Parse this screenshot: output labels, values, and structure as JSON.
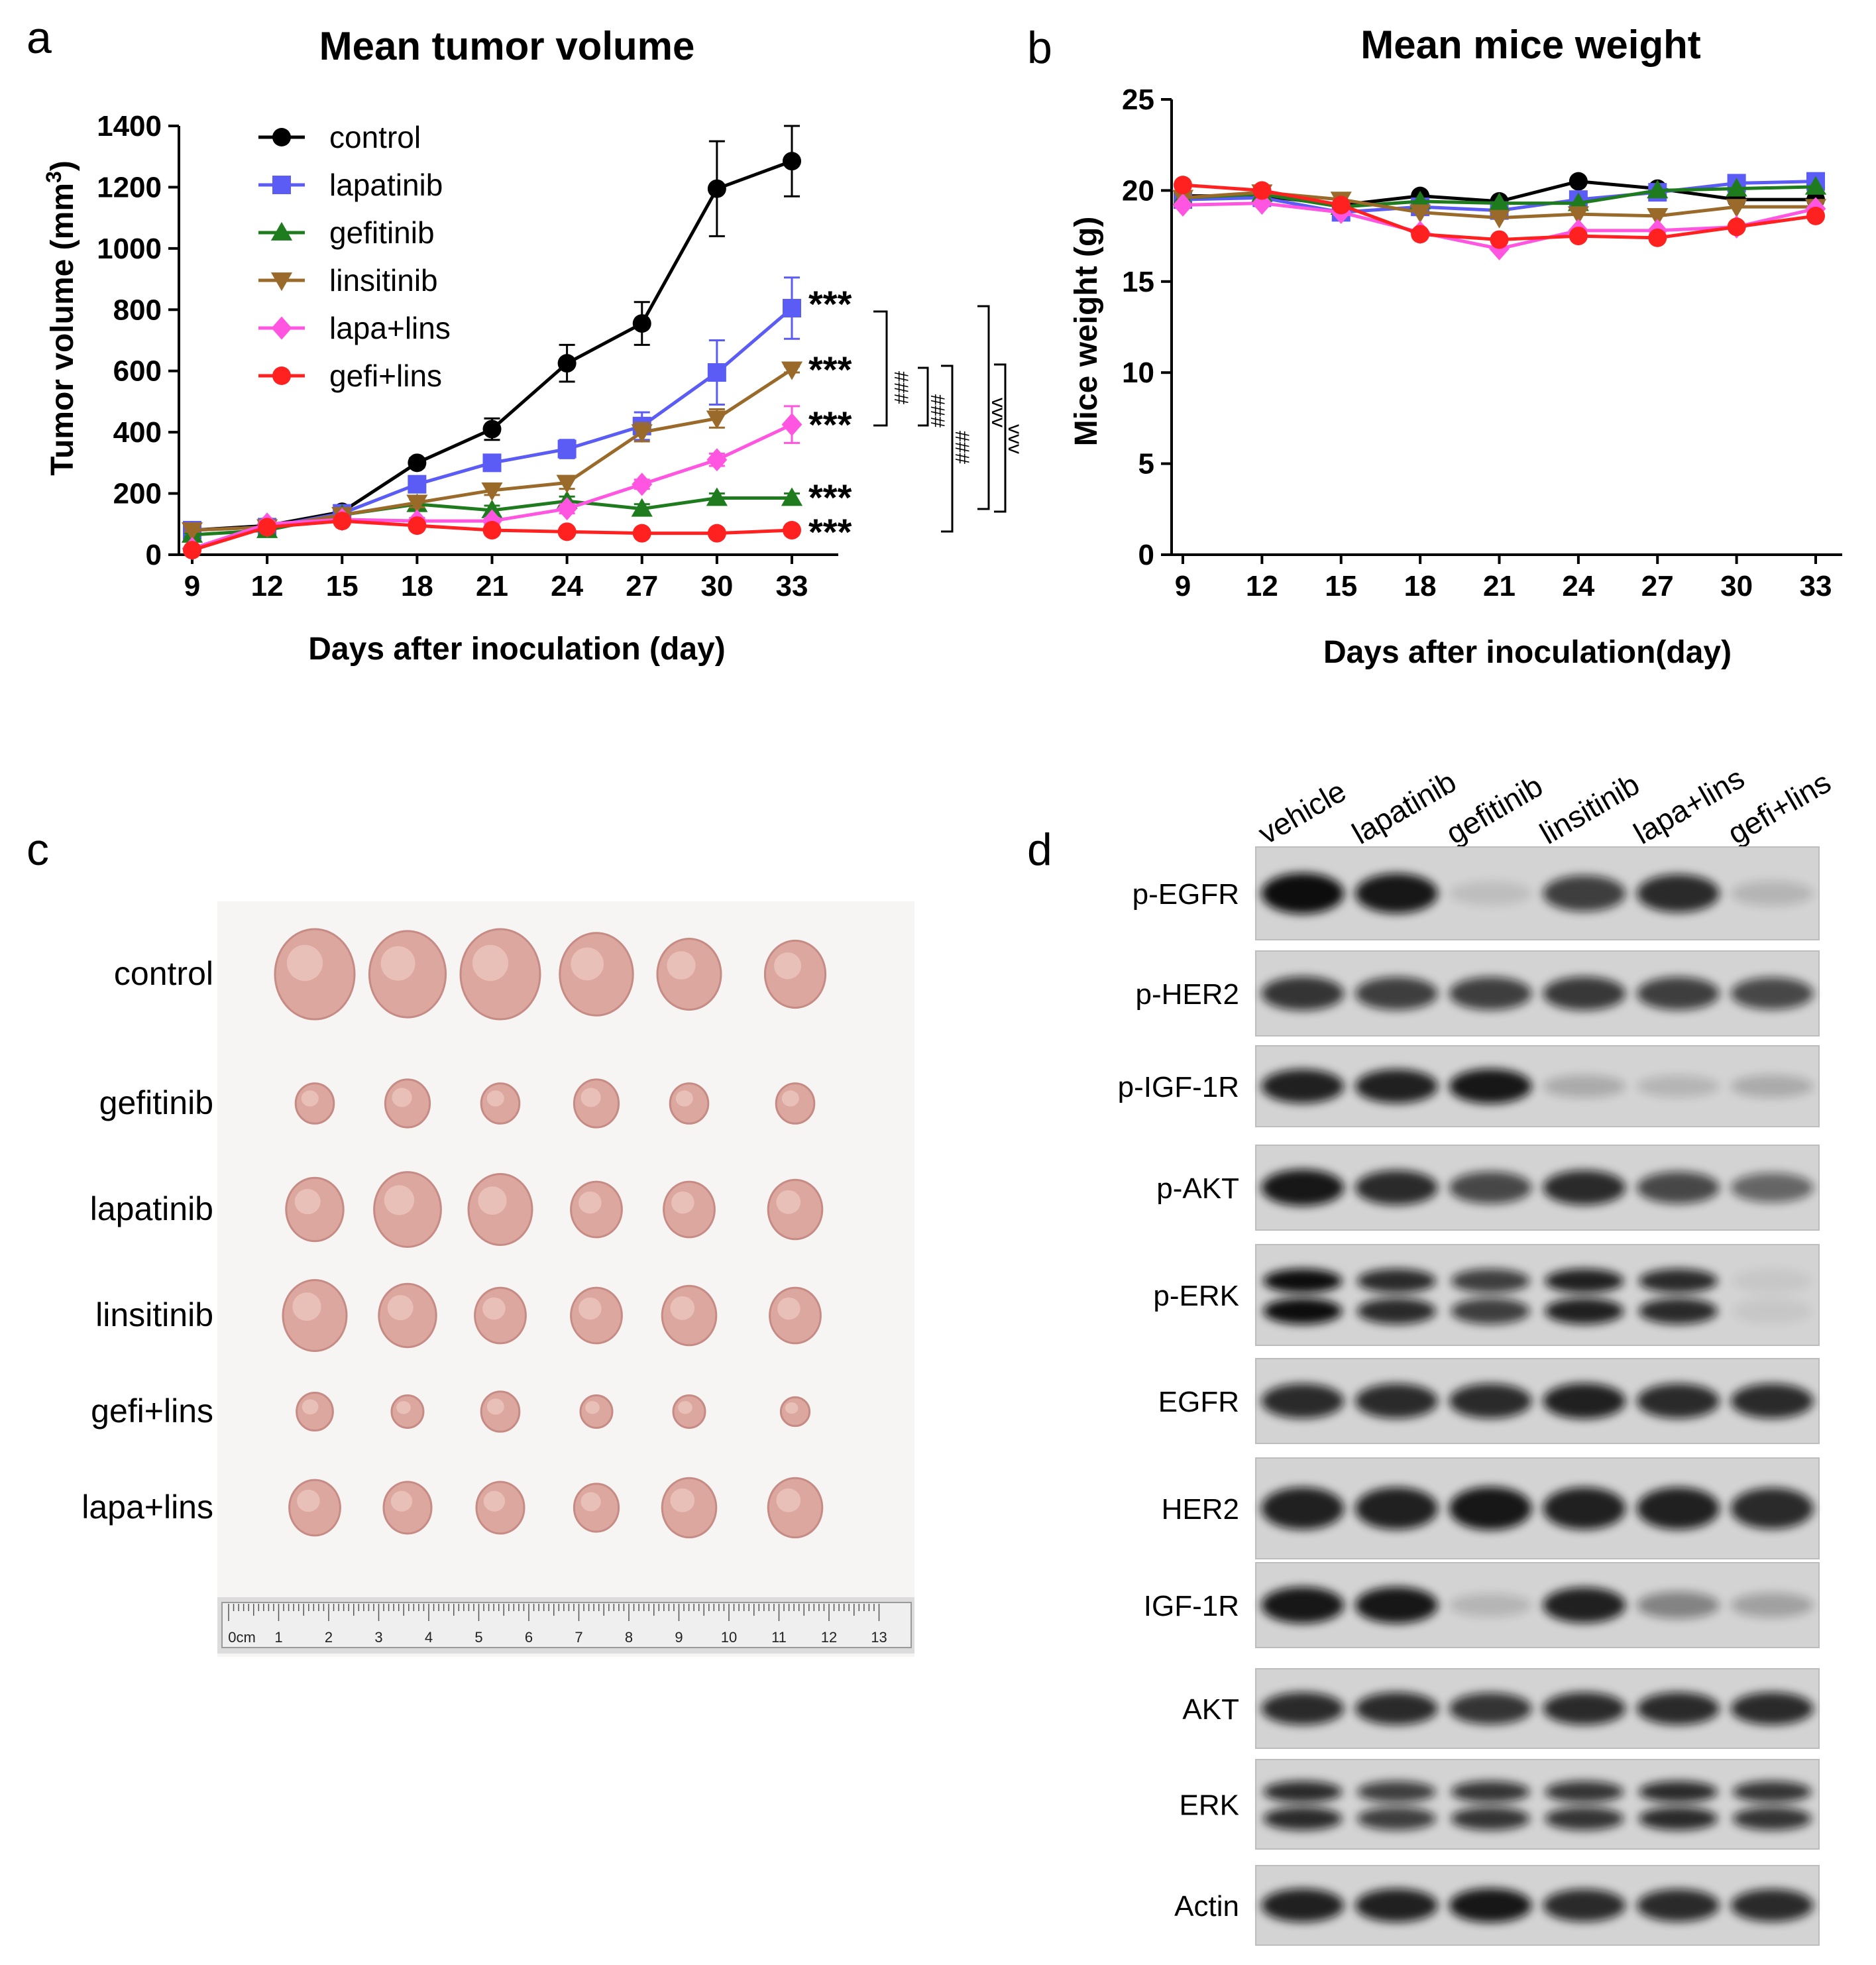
{
  "panels": {
    "a": "a",
    "b": "b",
    "c": "c",
    "d": "d"
  },
  "chart_data": [
    {
      "type": "line",
      "panel": "a",
      "title": "Mean tumor volume",
      "xlabel": "Days after inoculation (day)",
      "ylabel_main": "Tumor volume (mm",
      "ylabel_sup": "3",
      "ylabel_close": ")",
      "x": [
        9,
        12,
        15,
        18,
        21,
        24,
        27,
        30,
        33
      ],
      "x_ticks": [
        "9",
        "12",
        "15",
        "18",
        "21",
        "24",
        "27",
        "30",
        "33"
      ],
      "ylim": [
        0,
        1400
      ],
      "y_ticks": [
        "0",
        "200",
        "400",
        "600",
        "800",
        "1000",
        "1200",
        "1400"
      ],
      "legend_position": "top-left",
      "series": [
        {
          "name": "control",
          "color": "#000000",
          "marker": "circle",
          "values": [
            80,
            95,
            140,
            300,
            410,
            625,
            755,
            1195,
            1285
          ],
          "err": [
            10,
            10,
            15,
            15,
            35,
            60,
            70,
            155,
            115
          ]
        },
        {
          "name": "lapatinib",
          "color": "#5b5bf5",
          "marker": "square",
          "values": [
            80,
            90,
            135,
            230,
            300,
            345,
            420,
            595,
            805
          ],
          "err": [
            10,
            10,
            10,
            20,
            20,
            30,
            45,
            105,
            100
          ]
        },
        {
          "name": "gefitinib",
          "color": "#1e7b1e",
          "marker": "triangle-up",
          "values": [
            65,
            80,
            130,
            165,
            145,
            175,
            150,
            185,
            185
          ],
          "err": [
            5,
            5,
            10,
            15,
            15,
            15,
            15,
            15,
            15
          ]
        },
        {
          "name": "linsitinib",
          "color": "#9a6a2a",
          "marker": "triangle-down",
          "values": [
            80,
            90,
            130,
            170,
            210,
            235,
            400,
            445,
            605
          ],
          "err": [
            5,
            5,
            10,
            15,
            15,
            20,
            30,
            30,
            10
          ]
        },
        {
          "name": "lapa+lins",
          "color": "#ff55e0",
          "marker": "diamond",
          "values": [
            20,
            100,
            115,
            110,
            110,
            150,
            230,
            310,
            425
          ],
          "err": [
            5,
            10,
            10,
            10,
            10,
            15,
            15,
            20,
            60
          ]
        },
        {
          "name": "gefi+lins",
          "color": "#ff2020",
          "marker": "circle",
          "values": [
            15,
            90,
            110,
            95,
            80,
            75,
            70,
            70,
            80
          ],
          "err": [
            5,
            10,
            10,
            10,
            10,
            10,
            10,
            10,
            10
          ]
        }
      ],
      "annotations": {
        "stars": [
          "***",
          "***",
          "***",
          "***",
          "***"
        ],
        "hash": "###",
        "vvv": "vvv"
      }
    },
    {
      "type": "line",
      "panel": "b",
      "title": "Mean mice weight",
      "xlabel": "Days after inoculation(day)",
      "ylabel": "Mice weight (g)",
      "x": [
        9,
        12,
        15,
        18,
        21,
        24,
        27,
        30,
        33
      ],
      "x_ticks": [
        "9",
        "12",
        "15",
        "18",
        "21",
        "24",
        "27",
        "30",
        "33"
      ],
      "ylim": [
        0,
        25
      ],
      "y_ticks": [
        "0",
        "5",
        "10",
        "15",
        "20",
        "25"
      ],
      "series": [
        {
          "name": "control",
          "color": "#000000",
          "marker": "circle",
          "values": [
            19.7,
            19.7,
            19.2,
            19.7,
            19.4,
            20.5,
            20.1,
            19.5,
            19.5
          ]
        },
        {
          "name": "lapatinib",
          "color": "#5b5bf5",
          "marker": "square",
          "values": [
            19.5,
            19.6,
            18.8,
            19.1,
            18.9,
            19.5,
            19.9,
            20.4,
            20.5
          ]
        },
        {
          "name": "gefitinib",
          "color": "#1e7b1e",
          "marker": "triangle-up",
          "values": [
            19.6,
            19.8,
            19.1,
            19.4,
            19.3,
            19.3,
            20.0,
            20.1,
            20.2
          ]
        },
        {
          "name": "linsitinib",
          "color": "#9a6a2a",
          "marker": "triangle-down",
          "values": [
            19.6,
            19.9,
            19.5,
            18.8,
            18.5,
            18.7,
            18.6,
            19.1,
            19.1
          ]
        },
        {
          "name": "lapa+lins",
          "color": "#ff55e0",
          "marker": "diamond",
          "values": [
            19.2,
            19.3,
            18.8,
            17.7,
            16.8,
            17.8,
            17.8,
            18.0,
            19.0
          ]
        },
        {
          "name": "gefi+lins",
          "color": "#ff2020",
          "marker": "circle",
          "values": [
            20.3,
            20.0,
            19.2,
            17.6,
            17.3,
            17.5,
            17.4,
            18.0,
            18.6
          ]
        }
      ]
    }
  ],
  "photo": {
    "rows": [
      {
        "label": "control",
        "sizes": [
          1.0,
          0.95,
          1.0,
          0.9,
          0.75,
          0.7
        ]
      },
      {
        "label": "gefitinib",
        "sizes": [
          0.35,
          0.45,
          0.35,
          0.45,
          0.35,
          0.35
        ]
      },
      {
        "label": "lapatinib",
        "sizes": [
          0.65,
          0.8,
          0.75,
          0.55,
          0.55,
          0.6
        ]
      },
      {
        "label": "linsitinib",
        "sizes": [
          0.75,
          0.65,
          0.55,
          0.55,
          0.6,
          0.55
        ]
      },
      {
        "label": "gefi+lins",
        "sizes": [
          0.32,
          0.25,
          0.35,
          0.25,
          0.25,
          0.2
        ]
      },
      {
        "label": "lapa+lins",
        "sizes": [
          0.55,
          0.5,
          0.5,
          0.45,
          0.6,
          0.6
        ]
      }
    ],
    "ruler_labels": [
      "0cm",
      "1",
      "2",
      "3",
      "4",
      "5",
      "6",
      "7",
      "8",
      "9",
      "10",
      "11",
      "12",
      "13"
    ]
  },
  "western": {
    "lanes": [
      "vehicle",
      "lapatinib",
      "gefitinib",
      "linsitinib",
      "lapa+lins",
      "gefi+lins"
    ],
    "blots": [
      {
        "label": "p-EGFR",
        "bands": 1,
        "intensity": [
          1.0,
          0.95,
          0.1,
          0.75,
          0.85,
          0.15
        ]
      },
      {
        "label": "p-HER2",
        "bands": 1,
        "intensity": [
          0.8,
          0.75,
          0.75,
          0.78,
          0.75,
          0.7
        ]
      },
      {
        "label": "p-IGF-1R",
        "bands": 1,
        "intensity": [
          0.9,
          0.9,
          0.95,
          0.2,
          0.15,
          0.2
        ]
      },
      {
        "label": "p-AKT",
        "bands": 1,
        "intensity": [
          0.95,
          0.85,
          0.7,
          0.85,
          0.7,
          0.55
        ]
      },
      {
        "label": "p-ERK",
        "bands": 2,
        "intensity": [
          1.0,
          0.85,
          0.75,
          0.9,
          0.85,
          0.05
        ]
      },
      {
        "label": "EGFR",
        "bands": 1,
        "intensity": [
          0.85,
          0.85,
          0.85,
          0.9,
          0.85,
          0.85
        ]
      },
      {
        "label": "HER2",
        "bands": 1,
        "intensity": [
          0.9,
          0.9,
          0.95,
          0.9,
          0.9,
          0.85
        ]
      },
      {
        "label": "IGF-1R",
        "bands": 1,
        "intensity": [
          0.95,
          0.95,
          0.15,
          0.9,
          0.4,
          0.25
        ]
      },
      {
        "label": "AKT",
        "bands": 1,
        "intensity": [
          0.85,
          0.85,
          0.8,
          0.85,
          0.85,
          0.85
        ]
      },
      {
        "label": "ERK",
        "bands": 2,
        "intensity": [
          0.85,
          0.75,
          0.8,
          0.8,
          0.85,
          0.8
        ]
      },
      {
        "label": "Actin",
        "bands": 1,
        "intensity": [
          0.9,
          0.9,
          0.95,
          0.85,
          0.85,
          0.85
        ]
      }
    ]
  }
}
